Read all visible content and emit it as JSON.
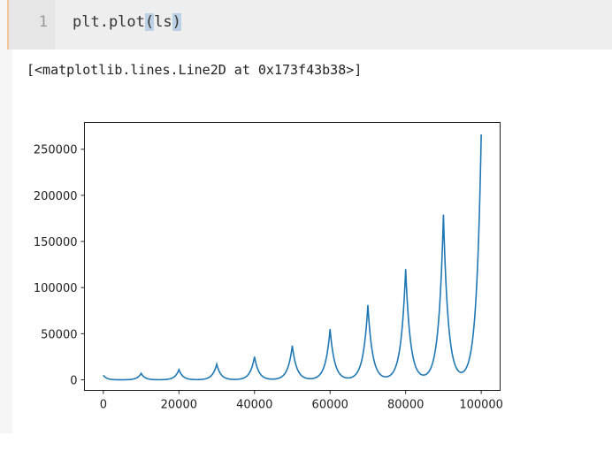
{
  "input_cell": {
    "line_number": "1",
    "code_parts": [
      "plt.plot",
      "(",
      "ls",
      ")"
    ]
  },
  "output_text": "[<matplotlib.lines.Line2D at 0x173f43b38>]",
  "colors": {
    "line": "#1f77b4",
    "cell_border": "#f0c69a"
  },
  "chart_data": {
    "type": "line",
    "title": "",
    "xlabel": "",
    "ylabel": "",
    "xlim": [
      -5000,
      105000
    ],
    "ylim": [
      -11500,
      279000
    ],
    "grid": false,
    "xticks": [
      0,
      20000,
      40000,
      60000,
      80000,
      100000
    ],
    "xtick_labels": [
      "0",
      "20000",
      "40000",
      "60000",
      "80000",
      "100000"
    ],
    "yticks": [
      0,
      50000,
      100000,
      150000,
      200000,
      250000
    ],
    "ytick_labels": [
      "0",
      "50000",
      "100000",
      "150000",
      "200000",
      "250000"
    ],
    "series": [
      {
        "peaks_x": [
          0,
          10000,
          20000,
          30000,
          40000,
          50000,
          60000,
          70000,
          80000,
          90000,
          100000
        ],
        "peaks_y": [
          5000,
          7000,
          11000,
          17000,
          25000,
          37000,
          55000,
          81000,
          120000,
          179000,
          266000
        ]
      }
    ]
  }
}
